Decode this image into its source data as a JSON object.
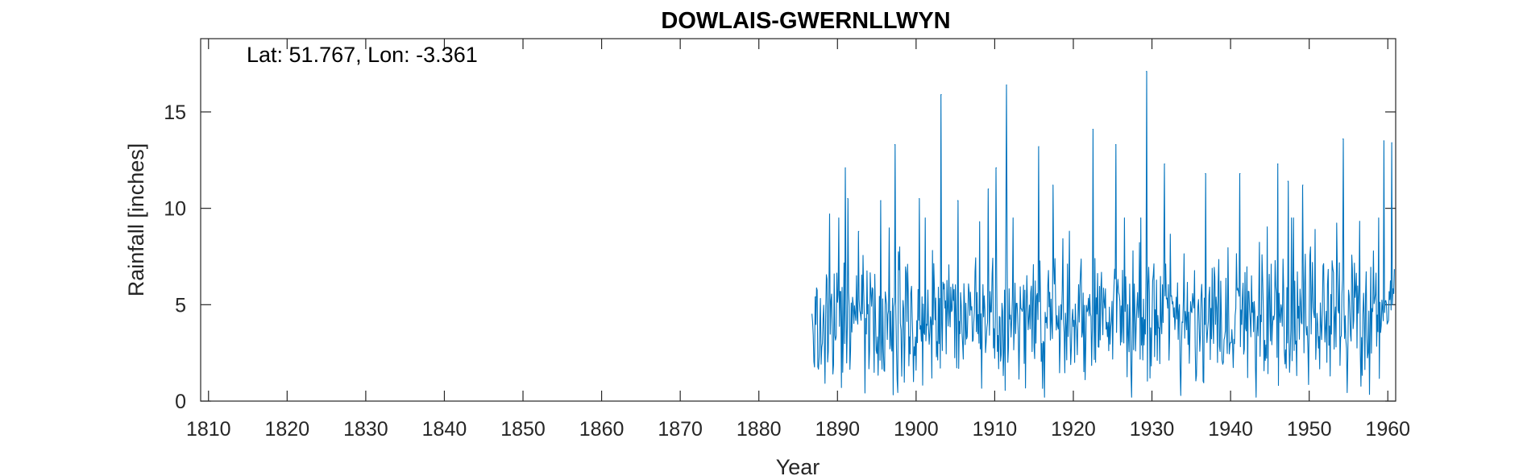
{
  "chart_data": {
    "type": "line",
    "title": "DOWLAIS-GWERNLLWYN",
    "annotation": "Lat: 51.767, Lon: -3.361",
    "xlabel": "Year",
    "ylabel": "Rainfall [inches]",
    "xlim": [
      1809,
      1961
    ],
    "ylim": [
      0,
      18.8
    ],
    "x_ticks": [
      1810,
      1820,
      1830,
      1840,
      1850,
      1860,
      1870,
      1880,
      1890,
      1900,
      1910,
      1920,
      1930,
      1940,
      1950,
      1960
    ],
    "y_ticks": [
      0,
      5,
      10,
      15
    ],
    "grid": false,
    "line_color": "#0072bd",
    "series": [
      {
        "data_start_year": 1886.75,
        "data_end_year": 1960.9,
        "sampling": "monthly",
        "peaks": [
          {
            "x": 1887.2,
            "y": 5.4
          },
          {
            "x": 1889.0,
            "y": 9.7
          },
          {
            "x": 1891.0,
            "y": 12.1
          },
          {
            "x": 1891.3,
            "y": 10.5
          },
          {
            "x": 1892.7,
            "y": 8.8
          },
          {
            "x": 1895.5,
            "y": 10.4
          },
          {
            "x": 1897.3,
            "y": 13.3
          },
          {
            "x": 1900.4,
            "y": 10.5
          },
          {
            "x": 1903.2,
            "y": 15.9
          },
          {
            "x": 1905.3,
            "y": 10.4
          },
          {
            "x": 1909.2,
            "y": 11.0
          },
          {
            "x": 1910.2,
            "y": 12.1
          },
          {
            "x": 1911.5,
            "y": 16.4
          },
          {
            "x": 1915.6,
            "y": 13.2
          },
          {
            "x": 1917.4,
            "y": 11.2
          },
          {
            "x": 1922.5,
            "y": 14.1
          },
          {
            "x": 1925.4,
            "y": 13.3
          },
          {
            "x": 1929.3,
            "y": 17.1
          },
          {
            "x": 1931.6,
            "y": 12.3
          },
          {
            "x": 1936.8,
            "y": 11.8
          },
          {
            "x": 1941.2,
            "y": 11.8
          },
          {
            "x": 1946.0,
            "y": 12.3
          },
          {
            "x": 1947.3,
            "y": 11.4
          },
          {
            "x": 1949.2,
            "y": 11.2
          },
          {
            "x": 1954.3,
            "y": 13.6
          },
          {
            "x": 1959.5,
            "y": 13.5
          },
          {
            "x": 1960.5,
            "y": 13.4
          }
        ],
        "typical_range": [
          0.5,
          8.0
        ],
        "typical_level": 4.2
      }
    ]
  }
}
